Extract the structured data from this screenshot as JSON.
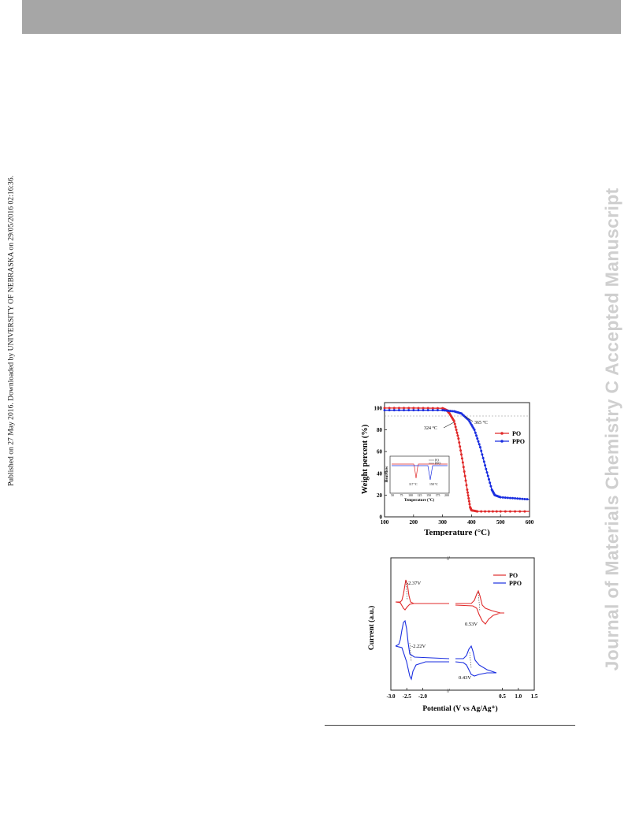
{
  "header": {
    "bar_color": "#a6a6a6"
  },
  "side_journal_title": "Journal of Materials Chemistry C Accepted Manuscript",
  "side_published": "Published on 27 May 2016. Downloaded by UNIVERSITY OF NEBRASKA on 29/05/2016 02:16:36.",
  "colors": {
    "po": "#e02a2a",
    "ppo": "#1a2ee0"
  },
  "chart_data": [
    {
      "type": "line",
      "title": "",
      "xlabel": "Temperature (°C)",
      "ylabel": "Weight percent (%)",
      "xlim": [
        100,
        600
      ],
      "ylim": [
        0,
        105
      ],
      "xticks": [
        "100",
        "200",
        "300",
        "400",
        "500",
        "600"
      ],
      "yticks": [
        "0",
        "20",
        "40",
        "60",
        "80",
        "100"
      ],
      "legend": {
        "placement": "right",
        "entries": [
          "PO",
          "PPO"
        ]
      },
      "annotations": [
        "324 °C",
        "365 °C"
      ],
      "series": [
        {
          "name": "PO",
          "color": "#e02a2a",
          "x": [
            100,
            200,
            300,
            315,
            324,
            340,
            355,
            370,
            385,
            395,
            400,
            420,
            500,
            600
          ],
          "y": [
            100,
            100,
            99.8,
            98,
            95,
            88,
            72,
            50,
            25,
            9,
            6,
            5,
            5,
            5
          ]
        },
        {
          "name": "PPO",
          "color": "#1a2ee0",
          "x": [
            100,
            200,
            300,
            340,
            365,
            390,
            410,
            430,
            450,
            470,
            480,
            500,
            550,
            600
          ],
          "y": [
            98,
            98,
            98,
            97,
            95,
            89,
            80,
            64,
            44,
            25,
            20,
            18,
            17,
            16
          ]
        }
      ],
      "inset": {
        "xlabel": "Temperature (°C)",
        "ylabel": "Heat flow",
        "xticks": [
          "50",
          "75",
          "100",
          "125",
          "150",
          "175",
          "200"
        ],
        "legend": [
          "PO",
          "PPO"
        ],
        "annotations": [
          "117 °C",
          "158 °C"
        ]
      }
    },
    {
      "type": "line",
      "title": "",
      "xlabel": "Potential (V vs Ag/Ag⁺)",
      "ylabel": "Current (a.u.)",
      "xlim": [
        -3.0,
        1.5
      ],
      "xticks": [
        "-3.0",
        "-2.5",
        "-2.0",
        "0.5",
        "1.0",
        "1.5"
      ],
      "legend": {
        "placement": "top-right",
        "entries": [
          "PO",
          "PPO"
        ]
      },
      "annotations": [
        "-2.37V",
        "0.53V",
        "-2.22V",
        "0.43V"
      ]
    }
  ]
}
